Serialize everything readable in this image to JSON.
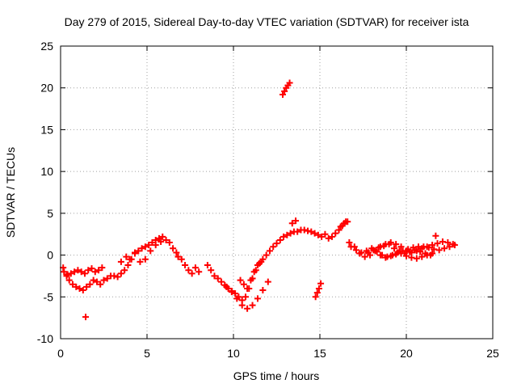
{
  "chart_data": {
    "type": "scatter",
    "title": "Day 279 of 2015, Sidereal Day-to-day VTEC variation (SDTVAR) for receiver ista",
    "xlabel": "GPS time / hours",
    "ylabel": "SDTVAR / TECUs",
    "xlim": [
      0,
      25
    ],
    "ylim": [
      -10,
      25
    ],
    "xticks": [
      0,
      5,
      10,
      15,
      20,
      25
    ],
    "yticks": [
      -10,
      -5,
      0,
      5,
      10,
      15,
      20,
      25
    ],
    "grid": true,
    "marker": "+",
    "color": "#ff0000",
    "series": [
      {
        "name": "SDTVAR",
        "x": [
          0.15,
          0.35,
          0.5,
          0.7,
          0.9,
          1.1,
          1.3,
          1.5,
          1.7,
          1.9,
          2.1,
          2.3,
          2.5,
          2.7,
          2.9,
          3.1,
          3.3,
          3.5,
          3.7,
          3.9,
          4.1,
          4.3,
          4.5,
          4.7,
          4.9,
          5.1,
          5.3,
          5.5,
          5.7,
          5.9,
          6.1,
          6.3,
          6.5,
          6.7,
          0.2,
          0.4,
          0.6,
          0.8,
          1.0,
          1.2,
          1.4,
          1.6,
          1.8,
          2.0,
          2.2,
          2.4,
          3.5,
          3.8,
          4.0,
          4.3,
          4.6,
          4.9,
          5.2,
          5.5,
          5.8,
          6.8,
          7.0,
          7.2,
          7.4,
          7.6,
          7.8,
          8.0,
          8.5,
          8.7,
          8.9,
          9.1,
          9.3,
          9.5,
          9.7,
          9.9,
          10.1,
          10.3,
          10.5,
          10.7,
          10.9,
          11.1,
          11.3,
          11.5,
          11.7,
          11.9,
          12.1,
          12.3,
          12.5,
          12.7,
          12.9,
          13.1,
          13.3,
          13.5,
          13.7,
          13.9,
          14.1,
          14.3,
          14.5,
          14.7,
          14.9,
          15.1,
          15.3,
          15.5,
          15.7,
          15.9,
          16.1,
          16.3,
          16.5,
          9.6,
          9.9,
          10.2,
          10.5,
          10.8,
          11.1,
          11.4,
          11.7,
          12.0,
          10.4,
          10.6,
          10.8,
          11.0,
          11.2,
          11.4,
          11.6,
          16.7,
          17.0,
          17.3,
          17.6,
          17.9,
          18.2,
          18.5,
          18.8,
          19.1,
          19.4,
          19.7,
          20.0,
          20.3,
          20.6,
          20.9,
          21.2,
          21.5,
          21.8,
          22.1,
          22.4,
          22.7,
          16.8,
          17.1,
          17.4,
          17.7,
          18.0,
          18.3,
          18.6,
          18.9,
          19.2,
          19.5,
          19.8,
          20.1,
          20.4,
          20.7,
          21.0,
          21.3,
          21.6,
          21.9,
          22.2,
          22.5,
          22.8,
          18.5,
          18.8,
          19.1,
          19.4,
          19.7,
          20.0,
          20.3,
          20.6,
          20.9,
          21.2,
          21.5,
          21.7,
          17.8,
          18.1,
          18.4,
          18.7,
          19.0,
          19.3,
          19.6,
          19.9,
          20.2,
          20.5,
          20.8,
          21.1,
          21.4,
          12.85,
          12.95,
          13.05,
          13.15,
          13.25,
          14.75,
          14.85,
          14.95,
          15.05,
          13.4,
          13.6,
          16.2,
          16.4,
          16.6,
          1.45
        ],
        "y": [
          -1.5,
          -2.5,
          -3.0,
          -3.5,
          -3.8,
          -4.0,
          -4.2,
          -3.8,
          -3.5,
          -3.0,
          -3.2,
          -3.5,
          -3.0,
          -2.8,
          -2.5,
          -2.5,
          -2.6,
          -2.2,
          -1.8,
          -1.2,
          -0.5,
          0.2,
          0.5,
          0.8,
          1.0,
          1.2,
          1.5,
          1.8,
          2.0,
          2.2,
          1.8,
          1.5,
          0.8,
          0.3,
          -2.0,
          -2.3,
          -2.2,
          -2.0,
          -1.8,
          -2.0,
          -2.2,
          -1.8,
          -1.6,
          -2.0,
          -1.8,
          -1.5,
          -0.8,
          -0.2,
          -0.5,
          0.3,
          -0.8,
          -0.5,
          0.5,
          1.2,
          1.6,
          -0.2,
          -0.5,
          -1.2,
          -1.8,
          -2.2,
          -1.5,
          -2.0,
          -1.2,
          -1.8,
          -2.5,
          -2.8,
          -3.2,
          -3.6,
          -4.0,
          -4.4,
          -4.6,
          -5.0,
          -5.4,
          -5.0,
          -4.0,
          -2.8,
          -1.8,
          -1.0,
          -0.5,
          0.0,
          0.5,
          1.0,
          1.4,
          1.8,
          2.2,
          2.4,
          2.6,
          2.8,
          2.8,
          3.0,
          3.0,
          2.9,
          2.8,
          2.6,
          2.4,
          2.2,
          2.5,
          2.0,
          2.2,
          2.6,
          3.0,
          3.5,
          4.0,
          -3.8,
          -4.3,
          -5.2,
          -6.0,
          -6.4,
          -6.0,
          -5.2,
          -4.2,
          -3.2,
          -3.0,
          -3.5,
          -4.0,
          -3.0,
          -2.0,
          -1.2,
          -0.8,
          1.5,
          1.0,
          0.2,
          -0.2,
          0.0,
          0.5,
          1.0,
          1.3,
          1.5,
          1.3,
          1.0,
          0.5,
          0.3,
          0.5,
          0.8,
          1.0,
          1.2,
          1.4,
          1.6,
          1.5,
          1.3,
          1.0,
          0.6,
          0.3,
          0.5,
          0.8,
          0.4,
          0.0,
          -0.2,
          0.0,
          0.3,
          0.5,
          0.7,
          0.9,
          1.0,
          1.0,
          0.9,
          0.7,
          0.6,
          0.8,
          1.0,
          1.2,
          0.0,
          -0.3,
          -0.1,
          0.1,
          0.2,
          -0.1,
          -0.3,
          -0.4,
          -0.2,
          0.0,
          0.2,
          2.3,
          0.3,
          0.6,
          0.9,
          1.1,
          1.3,
          0.8,
          0.5,
          0.2,
          0.4,
          0.6,
          0.4,
          0.2,
          0.0,
          19.2,
          19.6,
          20.0,
          20.3,
          20.6,
          -5.0,
          -4.5,
          -4.0,
          -3.4,
          3.8,
          4.1,
          3.4,
          3.8,
          4.0,
          -7.4
        ]
      }
    ]
  }
}
